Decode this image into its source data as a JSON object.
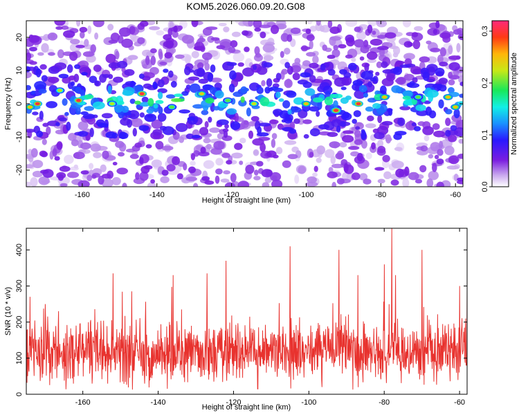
{
  "title": "KOM5.2026.060.09.20.G08",
  "colors": {
    "snr_line": "#e8322e",
    "colormap": [
      "#ffffff",
      "#c9a8ee",
      "#7a1ee0",
      "#2a18ff",
      "#1a90ff",
      "#12f0e6",
      "#18e85a",
      "#c8e817",
      "#ffb60a",
      "#ff3a14",
      "#ff2a7a"
    ],
    "axis": "#000000",
    "background": "#ffffff"
  },
  "chart_data": [
    {
      "type": "heatmap",
      "title": "",
      "xlabel": "Height of straight line (km)",
      "ylabel": "Frequency (Hz)",
      "xlim": [
        -175,
        -58
      ],
      "ylim": [
        -25,
        25
      ],
      "x_ticks": [
        -160,
        -140,
        -120,
        -100,
        -80,
        -60
      ],
      "x_tick_labels": [
        "-160",
        "-140",
        "-120",
        "-100",
        "-80",
        "-60"
      ],
      "y_ticks": [
        -20,
        -10,
        0,
        10,
        20
      ],
      "y_tick_labels": [
        "-20",
        "-10",
        "0",
        "10",
        "20"
      ],
      "band_center_hz": 1,
      "band_halfwidth_hz": 5,
      "peaks": [
        {
          "x": -174,
          "y": -1,
          "value": 0.25
        },
        {
          "x": -172,
          "y": 0,
          "value": 0.3
        },
        {
          "x": -166,
          "y": 4,
          "value": 0.22
        },
        {
          "x": -161,
          "y": 1,
          "value": 0.3
        },
        {
          "x": -152,
          "y": 0,
          "value": 0.22
        },
        {
          "x": -144,
          "y": 3,
          "value": 0.3
        },
        {
          "x": -136,
          "y": -1,
          "value": 0.2
        },
        {
          "x": -128,
          "y": 3,
          "value": 0.24
        },
        {
          "x": -121,
          "y": 1,
          "value": 0.2
        },
        {
          "x": -114,
          "y": 0,
          "value": 0.23
        },
        {
          "x": -100,
          "y": 0,
          "value": 0.25
        },
        {
          "x": -92,
          "y": -2,
          "value": 0.3
        },
        {
          "x": -86,
          "y": 0,
          "value": 0.3
        },
        {
          "x": -79,
          "y": 2,
          "value": 0.25
        },
        {
          "x": -70,
          "y": 2,
          "value": 0.2
        },
        {
          "x": -62,
          "y": 2,
          "value": 0.25
        },
        {
          "x": -60,
          "y": -1,
          "value": 0.25
        }
      ],
      "colorbar": {
        "label": "Normalized spectral amplitude",
        "range": [
          0,
          0.32
        ],
        "ticks": [
          0.0,
          0.1,
          0.2,
          0.3
        ],
        "tick_labels": [
          "0.0",
          "0.1",
          "0.2",
          "0.3"
        ]
      }
    },
    {
      "type": "line",
      "title": "",
      "xlabel": "Height of straight line (km)",
      "ylabel": "SNR (10 * v/v)",
      "xlim": [
        -175,
        -58
      ],
      "ylim": [
        0,
        460
      ],
      "x_ticks": [
        -160,
        -140,
        -120,
        -100,
        -80,
        -60
      ],
      "x_tick_labels": [
        "-160",
        "-140",
        "-120",
        "-100",
        "-80",
        "-60"
      ],
      "y_ticks": [
        0,
        100,
        200,
        300,
        400
      ],
      "y_tick_labels": [
        "0",
        "100",
        "200",
        "300",
        "400"
      ],
      "series": [
        {
          "color": "#e8322e",
          "baseline": 115,
          "spread": 70,
          "min_value": 10,
          "peaks": [
            {
              "x": -174,
              "y": 270
            },
            {
              "x": -170,
              "y": 250
            },
            {
              "x": -152,
              "y": 335
            },
            {
              "x": -147,
              "y": 285
            },
            {
              "x": -136,
              "y": 330
            },
            {
              "x": -127,
              "y": 335
            },
            {
              "x": -122,
              "y": 370
            },
            {
              "x": -105,
              "y": 410
            },
            {
              "x": -92,
              "y": 400
            },
            {
              "x": -87,
              "y": 330
            },
            {
              "x": -80,
              "y": 360
            },
            {
              "x": -78,
              "y": 460
            },
            {
              "x": -77,
              "y": 330
            },
            {
              "x": -70,
              "y": 400
            },
            {
              "x": -60,
              "y": 300
            },
            {
              "x": -58,
              "y": 285
            }
          ]
        }
      ]
    }
  ]
}
